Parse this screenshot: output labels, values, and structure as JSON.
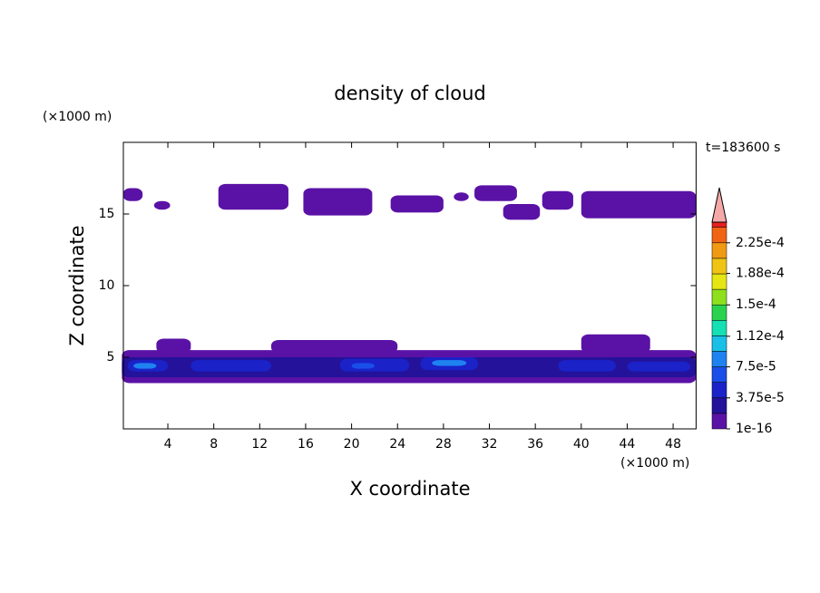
{
  "chart_data": {
    "type": "contour",
    "title": "density of cloud",
    "time_label": "t=183600 s",
    "x_label": "X coordinate",
    "y_label": "Z coordinate",
    "x_unit": "(×1000 m)",
    "y_unit": "(×1000 m)",
    "xlim": [
      0,
      50
    ],
    "ylim": [
      0,
      20
    ],
    "xticks": [
      4,
      8,
      12,
      16,
      20,
      24,
      28,
      32,
      36,
      40,
      44,
      48
    ],
    "yticks": [
      5,
      10,
      15
    ],
    "colorbar": {
      "clim": [
        1e-16,
        0.00025
      ],
      "levels": [
        1e-16,
        1.875e-05,
        3.75e-05,
        5.625e-05,
        7.5e-05,
        9.375e-05,
        0.0001125,
        0.00013125,
        0.00015,
        0.00016875,
        0.0001875,
        0.00020625,
        0.000225,
        0.00024375
      ],
      "colors": [
        "#5a12a6",
        "#24129a",
        "#1a22c8",
        "#1a4ee8",
        "#1e82f0",
        "#18c0e8",
        "#14e0b4",
        "#2ad250",
        "#8ee01e",
        "#e6e614",
        "#f0c414",
        "#f09a14",
        "#f06414",
        "#e62020"
      ],
      "extend_color": "#f4a8a8",
      "ticks": [
        {
          "value": 1e-16,
          "label": "1e-16"
        },
        {
          "value": 3.75e-05,
          "label": "3.75e-5"
        },
        {
          "value": 7.5e-05,
          "label": "7.5e-5"
        },
        {
          "value": 0.000112,
          "label": "1.12e-4"
        },
        {
          "value": 0.00015,
          "label": "1.5e-4"
        },
        {
          "value": 0.000188,
          "label": "1.88e-4"
        },
        {
          "value": 0.000225,
          "label": "2.25e-4"
        }
      ]
    },
    "regions": [
      {
        "x": [
          0,
          50
        ],
        "z": [
          3.2,
          5.5
        ],
        "value": 1e-16
      },
      {
        "x": [
          3,
          6
        ],
        "z": [
          5.3,
          6.3
        ],
        "value": 1e-16
      },
      {
        "x": [
          13,
          24
        ],
        "z": [
          5.3,
          6.2
        ],
        "value": 1e-16
      },
      {
        "x": [
          40,
          46
        ],
        "z": [
          5.3,
          6.6
        ],
        "value": 1e-16
      },
      {
        "x": [
          0.1,
          1.8
        ],
        "z": [
          15.9,
          16.8
        ],
        "value": 1e-16
      },
      {
        "x": [
          2.8,
          4.2
        ],
        "z": [
          15.3,
          15.9
        ],
        "value": 1e-16
      },
      {
        "x": [
          8.4,
          14.5
        ],
        "z": [
          15.3,
          17.1
        ],
        "value": 1e-16
      },
      {
        "x": [
          15.8,
          21.8
        ],
        "z": [
          14.9,
          16.8
        ],
        "value": 1e-16
      },
      {
        "x": [
          23.4,
          28
        ],
        "z": [
          15.1,
          16.3
        ],
        "value": 1e-16
      },
      {
        "x": [
          28.9,
          30.2
        ],
        "z": [
          15.9,
          16.5
        ],
        "value": 1e-16
      },
      {
        "x": [
          30.7,
          34.4
        ],
        "z": [
          15.9,
          17
        ],
        "value": 1e-16
      },
      {
        "x": [
          33.2,
          36.4
        ],
        "z": [
          14.6,
          15.7
        ],
        "value": 1e-16
      },
      {
        "x": [
          36.6,
          39.3
        ],
        "z": [
          15.3,
          16.6
        ],
        "value": 1e-16
      },
      {
        "x": [
          40,
          50
        ],
        "z": [
          14.7,
          16.6
        ],
        "value": 1e-16
      },
      {
        "x": [
          0,
          50
        ],
        "z": [
          3.6,
          5.0
        ],
        "value": 1.875e-05
      },
      {
        "x": [
          0.5,
          4
        ],
        "z": [
          4.0,
          4.8
        ],
        "value": 3.75e-05
      },
      {
        "x": [
          6,
          13
        ],
        "z": [
          4.0,
          4.8
        ],
        "value": 3.75e-05
      },
      {
        "x": [
          19,
          25
        ],
        "z": [
          4.0,
          4.9
        ],
        "value": 3.75e-05
      },
      {
        "x": [
          26,
          31
        ],
        "z": [
          4.1,
          5.0
        ],
        "value": 3.75e-05
      },
      {
        "x": [
          38,
          43
        ],
        "z": [
          4.0,
          4.8
        ],
        "value": 3.75e-05
      },
      {
        "x": [
          44,
          49.5
        ],
        "z": [
          4.0,
          4.7
        ],
        "value": 3.75e-05
      },
      {
        "x": [
          1,
          3
        ],
        "z": [
          4.2,
          4.6
        ],
        "value": 7.5e-05
      },
      {
        "x": [
          20,
          22
        ],
        "z": [
          4.2,
          4.6
        ],
        "value": 5.625e-05
      },
      {
        "x": [
          27,
          30
        ],
        "z": [
          4.4,
          4.8
        ],
        "value": 7.5e-05
      }
    ]
  }
}
